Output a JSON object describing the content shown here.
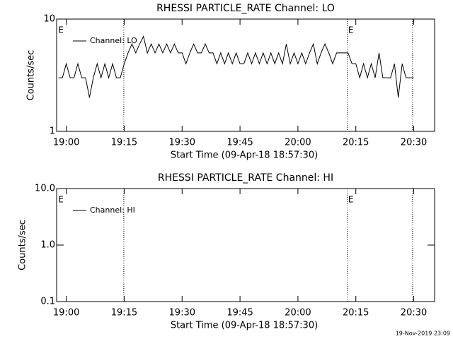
{
  "chart_data": [
    {
      "type": "line",
      "title": "RHESSI PARTICLE_RATE Channel: LO",
      "xlabel": "Start Time (09-Apr-18 18:57:30)",
      "ylabel": "Counts/sec",
      "log_y": true,
      "ylim": [
        1,
        10
      ],
      "yticks": [
        1,
        10
      ],
      "xlim": [
        1137.5,
        1235.4
      ],
      "xticks": [
        {
          "value": 1140,
          "label": "19:00"
        },
        {
          "value": 1155,
          "label": "19:15"
        },
        {
          "value": 1170,
          "label": "19:30"
        },
        {
          "value": 1185,
          "label": "19:45"
        },
        {
          "value": 1200,
          "label": "20:00"
        },
        {
          "value": 1215,
          "label": "20:15"
        },
        {
          "value": 1230,
          "label": "20:30"
        }
      ],
      "vlines": [
        1154.9,
        1212.8,
        1229.7
      ],
      "annotations": [
        "E",
        "E"
      ],
      "x": [
        1138,
        1139,
        1140,
        1141,
        1142,
        1143,
        1144,
        1145,
        1146,
        1147,
        1148,
        1149,
        1150,
        1151,
        1152,
        1153,
        1154,
        1155,
        1156,
        1157,
        1158,
        1159,
        1160,
        1161,
        1162,
        1163,
        1164,
        1165,
        1166,
        1167,
        1168,
        1169,
        1170,
        1171,
        1172,
        1173,
        1174,
        1175,
        1176,
        1177,
        1178,
        1179,
        1180,
        1181,
        1182,
        1183,
        1184,
        1185,
        1186,
        1187,
        1188,
        1189,
        1190,
        1191,
        1192,
        1193,
        1194,
        1195,
        1196,
        1197,
        1198,
        1199,
        1200,
        1201,
        1202,
        1203,
        1204,
        1205,
        1206,
        1207,
        1208,
        1209,
        1210,
        1211,
        1212,
        1213,
        1214,
        1215,
        1216,
        1217,
        1218,
        1219,
        1220,
        1221,
        1222,
        1223,
        1224,
        1225,
        1226,
        1227,
        1228,
        1229,
        1230
      ],
      "series": [
        {
          "name": "Channel: LO",
          "color": "#000000",
          "values": [
            3,
            3,
            4,
            3,
            3,
            4,
            3,
            3,
            2,
            3,
            4,
            3,
            4,
            3,
            4,
            3,
            3,
            4,
            5,
            6,
            5,
            6,
            7,
            5,
            6,
            5,
            6,
            5,
            6,
            5,
            6,
            5,
            5,
            4,
            5,
            6,
            5,
            5,
            6,
            5,
            5,
            4,
            5,
            4,
            5,
            4,
            5,
            4,
            4,
            5,
            4,
            5,
            4,
            5,
            4,
            5,
            4,
            5,
            4,
            6,
            4,
            5,
            4,
            5,
            4,
            5,
            6,
            4,
            5,
            6,
            5,
            4,
            5,
            5,
            5,
            5,
            4,
            4,
            3,
            4,
            3,
            4,
            3,
            5,
            3,
            3,
            3,
            4,
            2,
            4,
            3,
            3,
            3
          ]
        }
      ]
    },
    {
      "type": "line",
      "title": "RHESSI PARTICLE_RATE Channel: HI",
      "xlabel": "Start Time (09-Apr-18 18:57:30)",
      "ylabel": "Counts/sec",
      "log_y": true,
      "ylim": [
        0.1,
        10
      ],
      "yticks": [
        0.1,
        {
          "value": 1,
          "label": "1.0"
        },
        {
          "value": 10,
          "label": "10.0"
        }
      ],
      "xlim": [
        1137.5,
        1235.4
      ],
      "xticks": [
        {
          "value": 1140,
          "label": "19:00"
        },
        {
          "value": 1155,
          "label": "19:15"
        },
        {
          "value": 1170,
          "label": "19:30"
        },
        {
          "value": 1185,
          "label": "19:45"
        },
        {
          "value": 1200,
          "label": "20:00"
        },
        {
          "value": 1215,
          "label": "20:15"
        },
        {
          "value": 1230,
          "label": "20:30"
        }
      ],
      "vlines": [
        1154.9,
        1212.8,
        1229.7
      ],
      "annotations": [
        "E",
        "E"
      ],
      "x": [],
      "series": [
        {
          "name": "Channel: HI",
          "color": "#000000",
          "values": []
        }
      ]
    }
  ],
  "footer": "19-Nov-2019 23:09"
}
